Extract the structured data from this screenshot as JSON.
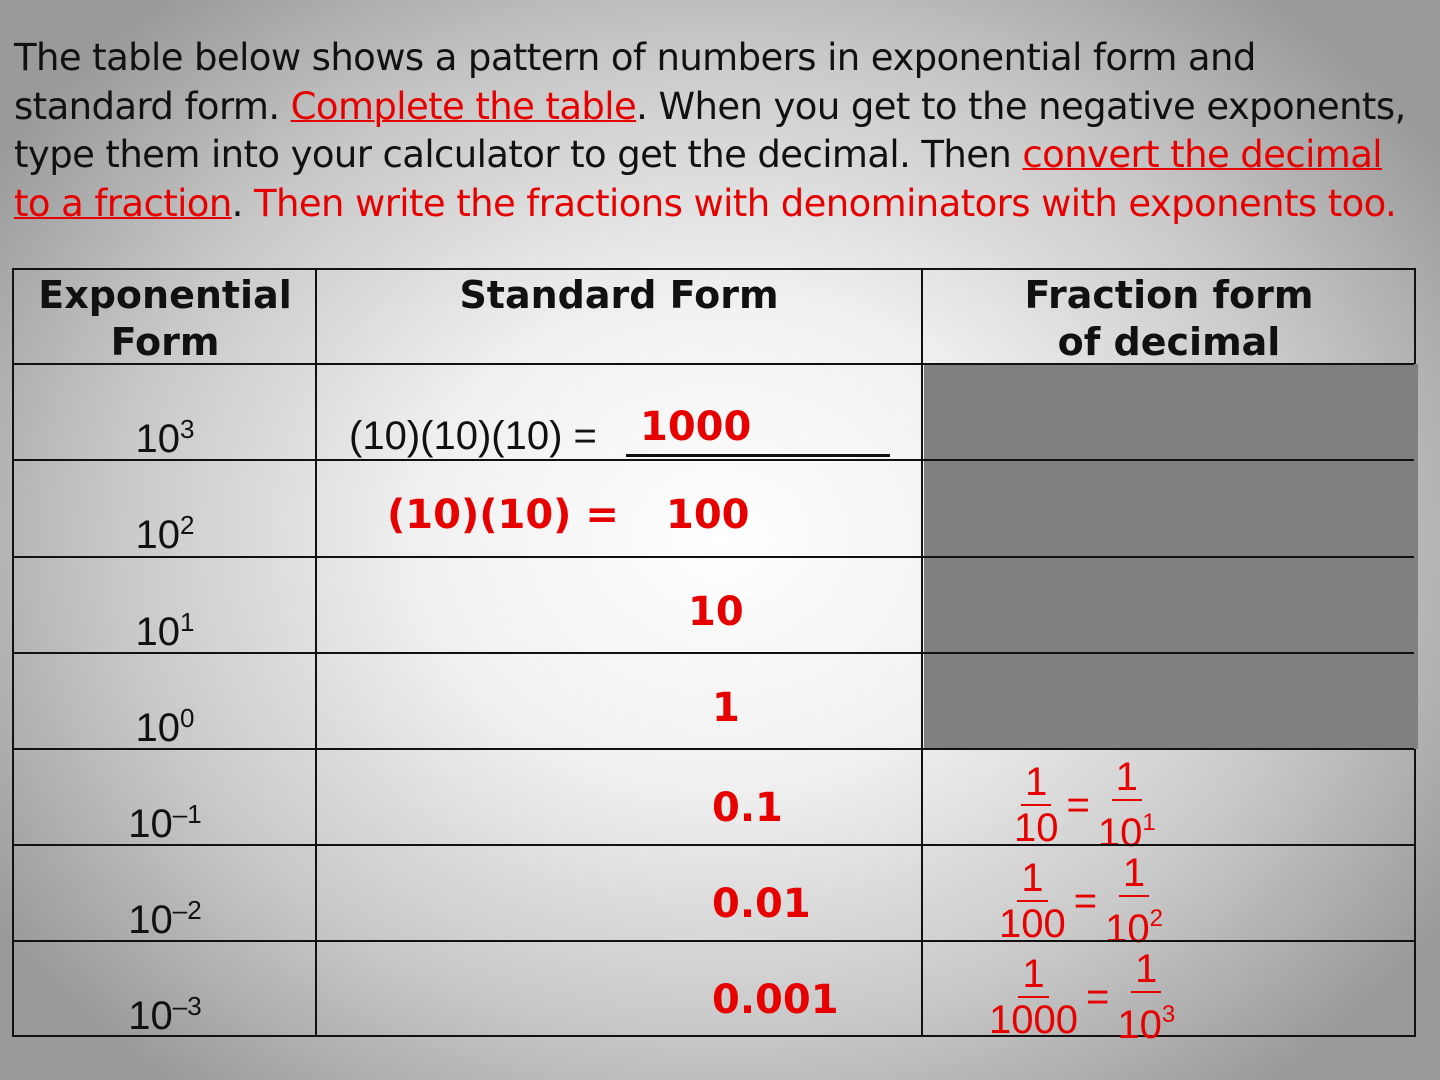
{
  "instructions": {
    "part1": "The table below shows a pattern of numbers in exponential form and standard form.  ",
    "link1": "Complete the table",
    "part2": ".  When you get to the negative exponents, type them into your calculator to get the decimal.  Then ",
    "link2": "convert the decimal to a fraction",
    "part3": ".  ",
    "part4": "Then write the fractions with denominators with exponents too."
  },
  "table": {
    "headers": [
      "Exponential Form",
      "Standard Form",
      "Fraction form of decimal"
    ],
    "rows": [
      {
        "base": "10",
        "exp": "3",
        "prefix": "(10)(10)(10) = ",
        "standard": "1000"
      },
      {
        "base": "10",
        "exp": "2",
        "prefix": "(10)(10) =",
        "standard": "100"
      },
      {
        "base": "10",
        "exp": "1",
        "standard": "10"
      },
      {
        "base": "10",
        "exp": "0",
        "standard": "1"
      },
      {
        "base": "10",
        "exp": "–1",
        "standard": "0.1",
        "frac": {
          "num": "1",
          "den": "10",
          "num2": "1",
          "den2base": "10",
          "den2exp": "1"
        }
      },
      {
        "base": "10",
        "exp": "–2",
        "standard": "0.01",
        "frac": {
          "num": "1",
          "den": "100",
          "num2": "1",
          "den2base": "10",
          "den2exp": "2"
        }
      },
      {
        "base": "10",
        "exp": "–3",
        "standard": "0.001",
        "frac": {
          "num": "1",
          "den": "1000",
          "num2": "1",
          "den2base": "10",
          "den2exp": "3"
        }
      }
    ]
  },
  "colors": {
    "accent": "#e60000",
    "shade": "#808080"
  }
}
